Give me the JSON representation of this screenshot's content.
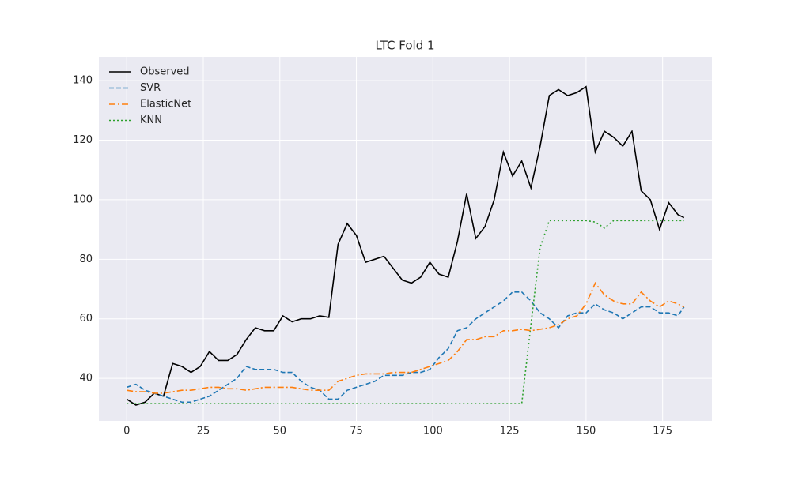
{
  "chart_data": {
    "type": "line",
    "title": "LTC Fold 1",
    "x": [
      0,
      3,
      6,
      9,
      12,
      15,
      18,
      21,
      24,
      27,
      30,
      33,
      36,
      39,
      42,
      45,
      48,
      51,
      54,
      57,
      60,
      63,
      66,
      69,
      72,
      75,
      78,
      81,
      84,
      87,
      90,
      93,
      96,
      99,
      102,
      105,
      108,
      111,
      114,
      117,
      120,
      123,
      126,
      129,
      132,
      135,
      138,
      141,
      144,
      147,
      150,
      153,
      156,
      159,
      162,
      165,
      168,
      171,
      174,
      177,
      180,
      182
    ],
    "series": [
      {
        "name": "Observed",
        "color": "#000000",
        "style": "solid",
        "values": [
          33,
          31,
          32,
          35,
          34,
          45,
          44,
          42,
          44,
          49,
          46,
          46,
          48,
          53,
          57,
          56,
          56,
          61,
          59,
          60,
          60,
          61,
          60.5,
          85,
          92,
          88,
          79,
          80,
          81,
          77,
          73,
          72,
          74,
          79,
          75,
          74,
          86,
          102,
          87,
          91,
          100,
          116,
          108,
          113,
          104,
          118,
          135,
          137,
          135,
          136,
          138,
          116,
          123,
          121,
          118,
          123,
          103,
          100,
          90,
          99,
          95,
          94
        ]
      },
      {
        "name": "SVR",
        "color": "#1f77b4",
        "style": "dashed",
        "values": [
          37,
          38,
          36,
          35,
          34,
          33,
          32,
          32,
          33,
          34,
          36,
          38,
          40,
          44,
          43,
          43,
          43,
          42,
          42,
          39,
          37,
          36,
          33,
          33,
          36,
          37,
          38,
          39,
          41,
          41,
          41,
          42,
          42,
          43,
          47,
          50,
          56,
          57,
          60,
          62,
          64,
          66,
          69,
          69,
          66,
          62,
          60,
          57,
          61,
          62,
          62,
          65,
          63,
          62,
          60,
          62,
          64,
          64,
          62,
          62,
          61,
          64
        ]
      },
      {
        "name": "ElasticNet",
        "color": "#ff7f0e",
        "style": "dashdot",
        "values": [
          36,
          35.5,
          35.5,
          35,
          35,
          35.5,
          36,
          36,
          36.5,
          37,
          37,
          36.5,
          36.5,
          36,
          36.5,
          37,
          37,
          37,
          37,
          36.5,
          36,
          36,
          36,
          39,
          40,
          41,
          41.5,
          41.5,
          41.5,
          42,
          42,
          42,
          43,
          44,
          45,
          46,
          49,
          53,
          53,
          54,
          54,
          56,
          56,
          56.5,
          56,
          56.5,
          57,
          58,
          60,
          61,
          65,
          72,
          68,
          66,
          65,
          65,
          69,
          66,
          64,
          66,
          65,
          64
        ]
      },
      {
        "name": "KNN",
        "color": "#2ca02c",
        "style": "dotted",
        "values": [
          31.5,
          31.5,
          31.5,
          31.5,
          31.5,
          31.5,
          31.5,
          31.5,
          31.5,
          31.5,
          31.5,
          31.5,
          31.5,
          31.5,
          31.5,
          31.5,
          31.5,
          31.5,
          31.5,
          31.5,
          31.5,
          31.5,
          31.5,
          31.5,
          31.5,
          31.5,
          31.5,
          31.5,
          31.5,
          31.5,
          31.5,
          31.5,
          31.5,
          31.5,
          31.5,
          31.5,
          31.5,
          31.5,
          31.5,
          31.5,
          31.5,
          31.5,
          31.5,
          31.5,
          58,
          84,
          93,
          93,
          93,
          93,
          93,
          92.5,
          90.5,
          93,
          93,
          93,
          93,
          93,
          93,
          93,
          93,
          93
        ]
      }
    ],
    "xlim": [
      -9.1,
      191.1
    ],
    "ylim": [
      25.7,
      148
    ],
    "xticks": [
      0,
      25,
      50,
      75,
      100,
      125,
      150,
      175
    ],
    "yticks": [
      40,
      60,
      80,
      100,
      120,
      140
    ],
    "grid": true,
    "legend": "upper-left"
  }
}
